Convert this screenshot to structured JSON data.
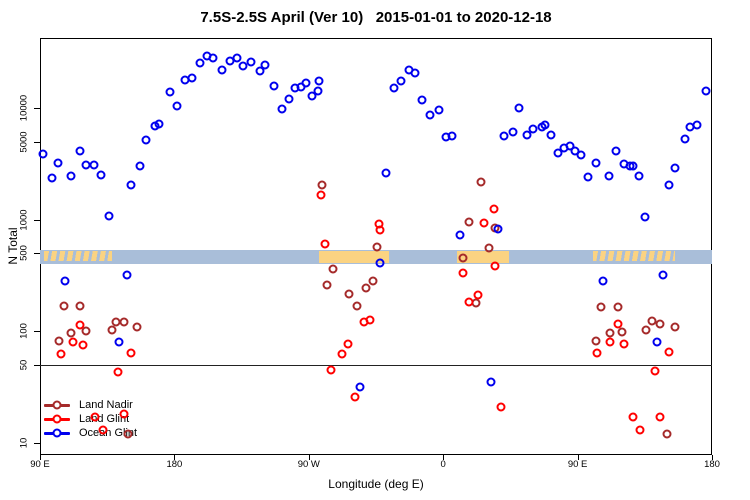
{
  "title": "7.5S-2.5S April (Ver 10)   2015-01-01 to 2020-12-18",
  "axes": {
    "x": {
      "label": "Longitude (deg E)",
      "ticks": [
        {
          "deg": 90,
          "label": "90 E"
        },
        {
          "deg": 180,
          "label": "180"
        },
        {
          "deg": 270,
          "label": "90 W"
        },
        {
          "deg": 360,
          "label": "0"
        },
        {
          "deg": 450,
          "label": "90 E"
        },
        {
          "deg": 540,
          "label": "180"
        }
      ]
    },
    "y": {
      "label": "N Total",
      "scale": "log",
      "ticks": [
        {
          "value": 10000,
          "label": "10000"
        },
        {
          "value": 5000,
          "label": "5000"
        },
        {
          "value": 1000,
          "label": "1000"
        },
        {
          "value": 500,
          "label": "500"
        },
        {
          "value": 100,
          "label": "100"
        },
        {
          "value": 50,
          "label": "50"
        },
        {
          "value": 10,
          "label": "10"
        }
      ]
    }
  },
  "legend": {
    "items": [
      {
        "label": "Land Nadir",
        "color": "#A52A2A"
      },
      {
        "label": "Land Glint",
        "color": "#FF0000"
      },
      {
        "label": "Ocean Glint",
        "color": "#0000EE"
      }
    ]
  },
  "reference_line_value": 50,
  "map_band": {
    "at_value": 500,
    "ocean_color": "#A9BED9",
    "land_color": "#FBD382",
    "segments": [
      {
        "from_deg": 93,
        "to_deg": 138,
        "style": "mottled"
      },
      {
        "from_deg": 277,
        "to_deg": 324,
        "style": "solid"
      },
      {
        "from_deg": 369,
        "to_deg": 404,
        "style": "solid"
      },
      {
        "from_deg": 460,
        "to_deg": 515,
        "style": "mottled"
      }
    ]
  },
  "chart_data": {
    "type": "scatter",
    "title": "7.5S-2.5S April (Ver 10)   2015-01-01 to 2020-12-18",
    "xlabel": "Longitude (deg E)",
    "ylabel": "N Total",
    "x_range_deg": [
      90,
      540
    ],
    "y_scale": "log",
    "ylim": [
      10,
      42000
    ],
    "legend_position": "bottom-left",
    "series": [
      {
        "name": "Land Nadir",
        "color": "#A52A2A",
        "points": [
          [
            103,
            82
          ],
          [
            106,
            167
          ],
          [
            111,
            96
          ],
          [
            117,
            169
          ],
          [
            121,
            100
          ],
          [
            138,
            102
          ],
          [
            141,
            122
          ],
          [
            146,
            121
          ],
          [
            149,
            12
          ],
          [
            155,
            109
          ],
          [
            279,
            2050
          ],
          [
            282,
            260
          ],
          [
            286,
            360
          ],
          [
            297,
            217
          ],
          [
            302,
            170
          ],
          [
            308,
            245
          ],
          [
            313,
            280
          ],
          [
            316,
            570
          ],
          [
            373,
            450
          ],
          [
            377,
            960
          ],
          [
            382,
            180
          ],
          [
            385,
            2150
          ],
          [
            391,
            560
          ],
          [
            395,
            840
          ],
          [
            462,
            82
          ],
          [
            466,
            164
          ],
          [
            472,
            96
          ],
          [
            477,
            164
          ],
          [
            480,
            98
          ],
          [
            496,
            103
          ],
          [
            500,
            123
          ],
          [
            505,
            117
          ],
          [
            510,
            12
          ],
          [
            515,
            110
          ]
        ]
      },
      {
        "name": "Land Glint",
        "color": "#FF0000",
        "points": [
          [
            104,
            63
          ],
          [
            112,
            81
          ],
          [
            117,
            114
          ],
          [
            119,
            76
          ],
          [
            127,
            17
          ],
          [
            132,
            13
          ],
          [
            142,
            43
          ],
          [
            146,
            18
          ],
          [
            151,
            64
          ],
          [
            278,
            1650
          ],
          [
            281,
            610
          ],
          [
            285,
            45
          ],
          [
            292,
            63
          ],
          [
            296,
            77
          ],
          [
            301,
            26
          ],
          [
            307,
            121
          ],
          [
            311,
            127
          ],
          [
            317,
            910
          ],
          [
            318,
            810
          ],
          [
            373,
            330
          ],
          [
            377,
            182
          ],
          [
            383,
            210
          ],
          [
            387,
            940
          ],
          [
            394,
            1240
          ],
          [
            395,
            385
          ],
          [
            399,
            21
          ],
          [
            463,
            64
          ],
          [
            472,
            81
          ],
          [
            477,
            116
          ],
          [
            481,
            77
          ],
          [
            487,
            17
          ],
          [
            492,
            13
          ],
          [
            502,
            44
          ],
          [
            505,
            17
          ],
          [
            511,
            65
          ]
        ]
      },
      {
        "name": "Ocean Glint",
        "color": "#0000EE",
        "points": [
          [
            92,
            3900
          ],
          [
            98,
            2350
          ],
          [
            102,
            3200
          ],
          [
            107,
            280
          ],
          [
            111,
            2440
          ],
          [
            117,
            4100
          ],
          [
            121,
            3100
          ],
          [
            126,
            3100
          ],
          [
            131,
            2500
          ],
          [
            136,
            1070
          ],
          [
            143,
            80
          ],
          [
            148,
            320
          ],
          [
            151,
            2050
          ],
          [
            157,
            3000
          ],
          [
            161,
            5200
          ],
          [
            167,
            6850
          ],
          [
            170,
            7200
          ],
          [
            177,
            14000
          ],
          [
            182,
            10300
          ],
          [
            187,
            17900
          ],
          [
            192,
            18500
          ],
          [
            197,
            25000
          ],
          [
            202,
            29000
          ],
          [
            206,
            28000
          ],
          [
            212,
            22000
          ],
          [
            217,
            26300
          ],
          [
            222,
            27700
          ],
          [
            226,
            23600
          ],
          [
            231,
            25800
          ],
          [
            237,
            21500
          ],
          [
            241,
            24300
          ],
          [
            247,
            15600
          ],
          [
            252,
            9700
          ],
          [
            257,
            11900
          ],
          [
            261,
            15000
          ],
          [
            265,
            15300
          ],
          [
            268,
            16700
          ],
          [
            272,
            12700
          ],
          [
            276,
            14300
          ],
          [
            277,
            17500
          ],
          [
            304,
            32
          ],
          [
            318,
            410
          ],
          [
            322,
            2600
          ],
          [
            327,
            15100
          ],
          [
            332,
            17500
          ],
          [
            337,
            22000
          ],
          [
            341,
            20600
          ],
          [
            346,
            11700
          ],
          [
            351,
            8650
          ],
          [
            357,
            9650
          ],
          [
            362,
            5500
          ],
          [
            366,
            5560
          ],
          [
            371,
            730
          ],
          [
            392,
            35
          ],
          [
            397,
            830
          ],
          [
            401,
            5560
          ],
          [
            407,
            6030
          ],
          [
            411,
            10000
          ],
          [
            416,
            5760
          ],
          [
            420,
            6500
          ],
          [
            426,
            6730
          ],
          [
            428,
            7000
          ],
          [
            432,
            5700
          ],
          [
            437,
            3940
          ],
          [
            441,
            4350
          ],
          [
            445,
            4600
          ],
          [
            448,
            4140
          ],
          [
            452,
            3760
          ],
          [
            457,
            2390
          ],
          [
            462,
            3210
          ],
          [
            467,
            280
          ],
          [
            471,
            2440
          ],
          [
            476,
            4140
          ],
          [
            481,
            3140
          ],
          [
            485,
            3030
          ],
          [
            487,
            3030
          ],
          [
            491,
            2470
          ],
          [
            495,
            1060
          ],
          [
            503,
            81
          ],
          [
            507,
            320
          ],
          [
            511,
            2050
          ],
          [
            515,
            2900
          ],
          [
            522,
            5300
          ],
          [
            525,
            6700
          ],
          [
            530,
            7000
          ],
          [
            536,
            14300
          ]
        ]
      }
    ]
  }
}
